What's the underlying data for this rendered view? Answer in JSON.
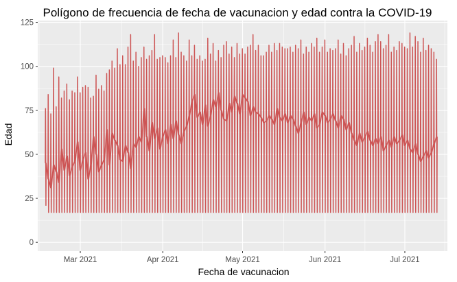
{
  "chart_data": {
    "type": "line",
    "title": "Polígono de frecuencia de fecha de vacunacion y edad contra la COVID-19",
    "xlabel": "Fecha de vacunacion",
    "ylabel": "Edad",
    "x_range": [
      "2021-02-13",
      "2021-07-17"
    ],
    "ylim": [
      -5,
      126
    ],
    "x_ticks": [
      {
        "date": "2021-03-01",
        "label": "Mar 2021"
      },
      {
        "date": "2021-04-01",
        "label": "Apr 2021"
      },
      {
        "date": "2021-05-01",
        "label": "May 2021"
      },
      {
        "date": "2021-06-01",
        "label": "Jun 2021"
      },
      {
        "date": "2021-07-01",
        "label": "Jul 2021"
      }
    ],
    "y_ticks": [
      0,
      25,
      50,
      75,
      100,
      125
    ],
    "grid": true,
    "line_color": "#cd5555",
    "panel_color": "#ebebeb",
    "series": [
      {
        "x_start": "2021-02-16",
        "x_end": "2021-07-13",
        "min_values": [
          21,
          17,
          17,
          17,
          17,
          17,
          17,
          17,
          17,
          17,
          17,
          17,
          17,
          17,
          17,
          17,
          17,
          17,
          17,
          17,
          17,
          17,
          17,
          17,
          17,
          17,
          17,
          17,
          17,
          17,
          17,
          17,
          17,
          17,
          17,
          17,
          17,
          17,
          17,
          17,
          17,
          17,
          17,
          17,
          17,
          17,
          17,
          17,
          17,
          17,
          17,
          17,
          17,
          17,
          17,
          17,
          17,
          17,
          17,
          17,
          17,
          17,
          17,
          17,
          17,
          17,
          17,
          17,
          17,
          17,
          17,
          17,
          17,
          17,
          17,
          17,
          17,
          17,
          17,
          17,
          17,
          17,
          17,
          17,
          17,
          17,
          17,
          17,
          17,
          17,
          17,
          17,
          17,
          17,
          17,
          17,
          17,
          17,
          17,
          17,
          17,
          17,
          17,
          17,
          17,
          17,
          17,
          17,
          17,
          17,
          17,
          17,
          17,
          17,
          17,
          17,
          17,
          17,
          17,
          17,
          17,
          17,
          17,
          17,
          17,
          17,
          17,
          17,
          17,
          17,
          17,
          17,
          17,
          17,
          17,
          17,
          17,
          17,
          17,
          17,
          17,
          17,
          17,
          17,
          17,
          17,
          17,
          17
        ],
        "max_values": [
          76,
          84,
          73,
          99,
          77,
          94,
          82,
          86,
          90,
          81,
          86,
          85,
          94,
          85,
          88,
          89,
          88,
          82,
          83,
          95,
          87,
          89,
          86,
          96,
          98,
          103,
          99,
          110,
          101,
          106,
          101,
          111,
          118,
          103,
          108,
          100,
          105,
          111,
          104,
          106,
          109,
          118,
          104,
          105,
          106,
          105,
          102,
          106,
          115,
          105,
          119,
          108,
          106,
          103,
          115,
          106,
          112,
          104,
          106,
          103,
          104,
          116,
          107,
          113,
          103,
          109,
          105,
          112,
          114,
          107,
          111,
          105,
          113,
          107,
          110,
          107,
          111,
          112,
          118,
          109,
          112,
          106,
          106,
          108,
          112,
          108,
          113,
          109,
          113,
          111,
          110,
          110,
          111,
          108,
          112,
          110,
          115,
          107,
          111,
          108,
          113,
          111,
          116,
          108,
          111,
          115,
          108,
          110,
          109,
          110,
          115,
          107,
          113,
          106,
          110,
          112,
          117,
          108,
          113,
          109,
          111,
          116,
          112,
          108,
          114,
          118,
          114,
          110,
          112,
          118,
          108,
          111,
          109,
          114,
          113,
          111,
          110,
          119,
          111,
          117,
          114,
          108,
          116,
          109,
          112,
          110,
          108,
          104
        ],
        "mean_values": [
          45,
          36,
          31,
          44,
          40,
          34,
          53,
          41,
          49,
          38,
          43,
          46,
          57,
          41,
          47,
          51,
          36,
          44,
          60,
          50,
          40,
          44,
          47,
          64,
          44,
          62,
          58,
          55,
          47,
          46,
          55,
          51,
          42,
          56,
          54,
          60,
          57,
          76,
          60,
          52,
          68,
          59,
          65,
          53,
          60,
          64,
          56,
          67,
          59,
          69,
          61,
          56,
          63,
          66,
          72,
          80,
          84,
          71,
          74,
          67,
          78,
          66,
          72,
          81,
          77,
          85,
          75,
          70,
          69,
          79,
          74,
          83,
          79,
          73,
          84,
          82,
          80,
          72,
          77,
          74,
          73,
          71,
          68,
          69,
          72,
          70,
          67,
          76,
          71,
          69,
          73,
          68,
          72,
          70,
          66,
          62,
          68,
          74,
          67,
          71,
          69,
          73,
          65,
          67,
          74,
          72,
          68,
          70,
          73,
          69,
          65,
          72,
          70,
          64,
          68,
          62,
          58,
          55,
          62,
          57,
          60,
          63,
          58,
          55,
          59,
          56,
          60,
          52,
          55,
          58,
          54,
          60,
          56,
          58,
          61,
          55,
          58,
          53,
          51,
          56,
          50,
          46,
          49,
          52,
          48,
          51,
          56,
          60
        ]
      }
    ]
  }
}
